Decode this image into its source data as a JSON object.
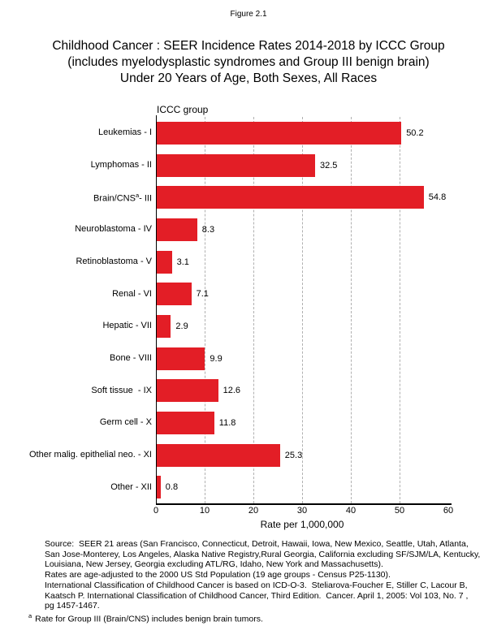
{
  "figure_label": "Figure 2.1",
  "title_lines": [
    "Childhood Cancer : SEER Incidence Rates 2014-2018 by ICCC Group",
    "(includes myelodysplastic syndromes and Group III benign brain)",
    "Under 20 Years of Age, Both Sexes, All Races"
  ],
  "chart_data": {
    "type": "bar",
    "orientation": "horizontal",
    "axis_title": "ICCC group",
    "xlabel": "Rate per 1,000,000",
    "xlim": [
      0,
      60
    ],
    "xticks": [
      0,
      10,
      20,
      30,
      40,
      50,
      60
    ],
    "gridline_ticks": [
      10,
      20,
      30,
      40,
      50
    ],
    "grid": "vertical-dashed",
    "bar_color": "#e31e26",
    "categories": [
      {
        "pre": "Leukemias - I",
        "sup": "",
        "post": ""
      },
      {
        "pre": "Lymphomas - II",
        "sup": "",
        "post": ""
      },
      {
        "pre": "Brain/CNS",
        "sup": "a",
        "post": "- III"
      },
      {
        "pre": "Neuroblastoma - IV",
        "sup": "",
        "post": ""
      },
      {
        "pre": "Retinoblastoma - V",
        "sup": "",
        "post": ""
      },
      {
        "pre": "Renal - VI",
        "sup": "",
        "post": ""
      },
      {
        "pre": "Hepatic - VII",
        "sup": "",
        "post": ""
      },
      {
        "pre": "Bone - VIII",
        "sup": "",
        "post": ""
      },
      {
        "pre": "Soft tissue  - IX",
        "sup": "",
        "post": ""
      },
      {
        "pre": "Germ cell - X",
        "sup": "",
        "post": ""
      },
      {
        "pre": "Other malig. epithelial neo. - XI",
        "sup": "",
        "post": ""
      },
      {
        "pre": "Other - XII",
        "sup": "",
        "post": ""
      }
    ],
    "values": [
      50.2,
      32.5,
      54.8,
      8.3,
      3.1,
      7.1,
      2.9,
      9.9,
      12.6,
      11.8,
      25.3,
      0.8
    ]
  },
  "footer": {
    "lines": [
      "Source:  SEER 21 areas (San Francisco, Connecticut, Detroit, Hawaii, Iowa, New Mexico, Seattle, Utah, Atlanta,",
      "San Jose-Monterey, Los Angeles, Alaska Native Registry,Rural Georgia, California excluding SF/SJM/LA, Kentucky,",
      "Louisiana, New Jersey, Georgia excluding ATL/RG, Idaho, New York and Massachusetts).",
      "Rates are age-adjusted to the 2000 US Std Population (19 age groups - Census P25-1130).",
      "International Classification of Childhood Cancer is based on ICD-O-3.  Steliarova-Foucher E, Stiller C, Lacour B,",
      "Kaatsch P. International Classification of Childhood Cancer, Third Edition.  Cancer. April 1, 2005: Vol 103, No. 7 ,",
      "pg 1457-1467."
    ],
    "footnote_marker": "a",
    "footnote_text": "Rate for Group III (Brain/CNS) includes benign brain tumors."
  }
}
